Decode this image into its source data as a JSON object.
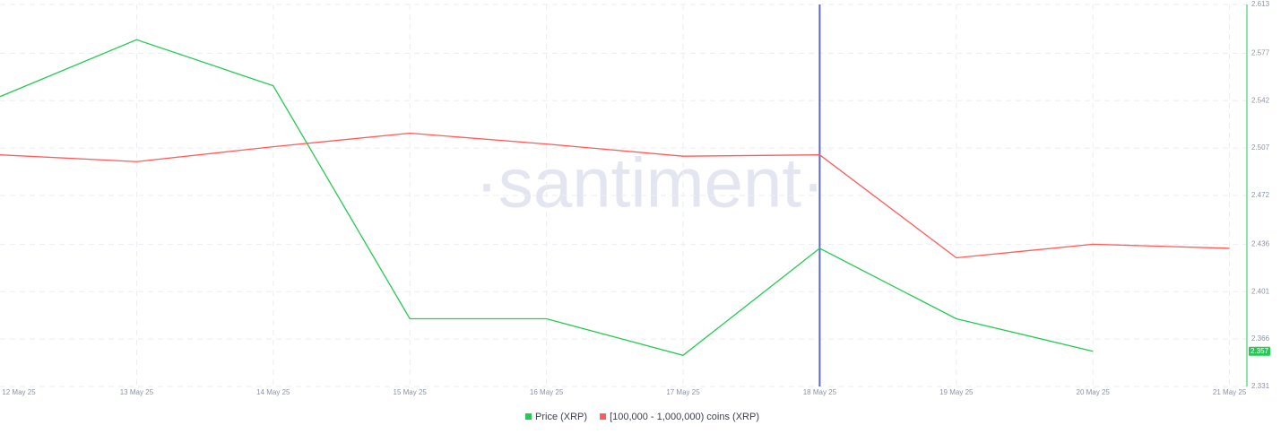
{
  "chart_data": {
    "type": "line",
    "watermark": "·santiment·",
    "categories": [
      "12 May 25",
      "13 May 25",
      "14 May 25",
      "15 May 25",
      "16 May 25",
      "17 May 25",
      "18 May 25",
      "19 May 25",
      "20 May 25",
      "21 May 25"
    ],
    "series": [
      {
        "name": "Price (XRP)",
        "color": "#26c953",
        "values": [
          2.545,
          2.587,
          2.553,
          2.381,
          2.381,
          2.354,
          2.433,
          2.381,
          2.357,
          null
        ]
      },
      {
        "name": "[100,000  - 1,000,000) coins (XRP)",
        "color": "#ff5b5b",
        "values": [
          2.502,
          2.497,
          2.508,
          2.518,
          2.51,
          2.501,
          2.502,
          2.426,
          2.436,
          2.433
        ]
      }
    ],
    "ylim": [
      2.331,
      2.613
    ],
    "yticks": [
      2.331,
      2.366,
      2.401,
      2.436,
      2.472,
      2.507,
      2.542,
      2.577,
      2.613
    ],
    "grid": true,
    "cursor_category": "18 May 25",
    "last_value_label_series": 0
  }
}
